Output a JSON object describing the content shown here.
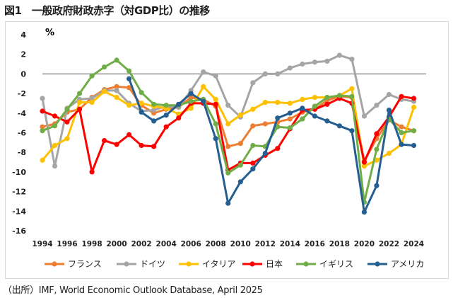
{
  "title": "図1　一般政府財政赤字（対GDP比）の推移",
  "source": "（出所）IMF, World Economic Outlook Database, April 2025",
  "chart_data": {
    "type": "line",
    "unit_label": "%",
    "title": "一般政府財政赤字（対GDP比）の推移",
    "ylim": [
      -16,
      4
    ],
    "yticks": [
      4,
      2,
      0,
      -2,
      -4,
      -6,
      -8,
      -10,
      -12,
      -14,
      -16
    ],
    "xlim": [
      1994,
      2025
    ],
    "xticks": [
      1994,
      1996,
      1998,
      2000,
      2002,
      2004,
      2006,
      2008,
      2010,
      2012,
      2014,
      2016,
      2018,
      2020,
      2022,
      2024
    ],
    "zero_line": true,
    "legend_position": "bottom",
    "series": [
      {
        "name": "フランス",
        "color": "#ED7D31",
        "x": [
          1994,
          1995,
          1996,
          1997,
          1998,
          1999,
          2000,
          2001,
          2002,
          2003,
          2004,
          2005,
          2006,
          2007,
          2008,
          2009,
          2010,
          2011,
          2012,
          2013,
          2014,
          2015,
          2016,
          2017,
          2018,
          2019,
          2020,
          2021,
          2022,
          2023,
          2024
        ],
        "values": [
          -5.4,
          -5.1,
          -3.9,
          -3.6,
          -2.4,
          -1.6,
          -1.3,
          -1.4,
          -3.2,
          -4.0,
          -3.6,
          -3.4,
          -2.4,
          -2.6,
          -3.3,
          -7.4,
          -7.1,
          -5.3,
          -5.1,
          -4.9,
          -4.6,
          -3.9,
          -3.6,
          -2.7,
          -2.3,
          -2.4,
          -8.9,
          -6.6,
          -4.7,
          -5.4,
          -5.8
        ]
      },
      {
        "name": "ドイツ",
        "color": "#A5A5A5",
        "x": [
          1994,
          1995,
          1996,
          1997,
          1998,
          1999,
          2000,
          2001,
          2002,
          2003,
          2004,
          2005,
          2006,
          2007,
          2008,
          2009,
          2010,
          2011,
          2012,
          2013,
          2014,
          2015,
          2016,
          2017,
          2018,
          2019,
          2020,
          2021,
          2022,
          2023,
          2024
        ],
        "values": [
          -2.5,
          -9.4,
          -3.5,
          -2.6,
          -2.5,
          -1.7,
          -1.7,
          -3.0,
          -3.8,
          -3.7,
          -3.3,
          -3.4,
          -1.7,
          0.2,
          -0.2,
          -3.2,
          -4.4,
          -0.9,
          0.0,
          0.0,
          0.6,
          1.0,
          1.2,
          1.3,
          1.9,
          1.5,
          -4.3,
          -3.2,
          -2.1,
          -2.6,
          -2.8
        ]
      },
      {
        "name": "イタリア",
        "color": "#FFC000",
        "x": [
          1994,
          1995,
          1996,
          1997,
          1998,
          1999,
          2000,
          2001,
          2002,
          2003,
          2004,
          2005,
          2006,
          2007,
          2008,
          2009,
          2010,
          2011,
          2012,
          2013,
          2014,
          2015,
          2016,
          2017,
          2018,
          2019,
          2020,
          2021,
          2022,
          2023,
          2024
        ],
        "values": [
          -8.8,
          -7.3,
          -6.6,
          -2.9,
          -2.9,
          -1.8,
          -2.4,
          -3.2,
          -3.0,
          -3.3,
          -3.5,
          -4.1,
          -3.5,
          -1.3,
          -2.6,
          -5.1,
          -4.2,
          -3.6,
          -2.9,
          -2.9,
          -3.0,
          -2.6,
          -2.4,
          -2.4,
          -2.2,
          -1.5,
          -9.4,
          -8.8,
          -8.1,
          -7.2,
          -3.4
        ]
      },
      {
        "name": "日本",
        "color": "#FF0000",
        "x": [
          1994,
          1995,
          1996,
          1997,
          1998,
          1999,
          2000,
          2001,
          2002,
          2003,
          2004,
          2005,
          2006,
          2007,
          2008,
          2009,
          2010,
          2011,
          2012,
          2013,
          2014,
          2015,
          2016,
          2017,
          2018,
          2019,
          2020,
          2021,
          2022,
          2023,
          2024
        ],
        "values": [
          -3.8,
          -4.3,
          -4.9,
          -3.6,
          -10.0,
          -6.8,
          -7.2,
          -6.2,
          -7.3,
          -7.4,
          -5.4,
          -4.5,
          -3.0,
          -3.0,
          -3.1,
          -9.8,
          -9.1,
          -9.1,
          -8.3,
          -7.6,
          -5.6,
          -3.7,
          -3.6,
          -3.1,
          -2.5,
          -3.0,
          -9.0,
          -6.1,
          -4.4,
          -2.3,
          -2.5
        ]
      },
      {
        "name": "イギリス",
        "color": "#70AD47",
        "x": [
          1994,
          1995,
          1996,
          1997,
          1998,
          1999,
          2000,
          2001,
          2002,
          2003,
          2004,
          2005,
          2006,
          2007,
          2008,
          2009,
          2010,
          2011,
          2012,
          2013,
          2014,
          2015,
          2016,
          2017,
          2018,
          2019,
          2020,
          2021,
          2022,
          2023,
          2024
        ],
        "values": [
          -5.8,
          -5.3,
          -3.6,
          -2.0,
          -0.2,
          0.7,
          1.4,
          0.3,
          -1.9,
          -3.1,
          -3.2,
          -3.2,
          -2.8,
          -2.6,
          -5.1,
          -10.1,
          -9.3,
          -7.3,
          -7.4,
          -5.4,
          -5.5,
          -4.6,
          -3.3,
          -2.4,
          -2.2,
          -2.3,
          -13.1,
          -7.7,
          -4.6,
          -6.0,
          -5.8
        ]
      },
      {
        "name": "アメリカ",
        "color": "#255E91",
        "x": [
          2001,
          2002,
          2003,
          2004,
          2005,
          2006,
          2007,
          2008,
          2009,
          2010,
          2011,
          2012,
          2013,
          2014,
          2015,
          2016,
          2017,
          2018,
          2019,
          2020,
          2021,
          2022,
          2023,
          2024
        ],
        "values": [
          -0.5,
          -3.9,
          -4.8,
          -4.2,
          -3.1,
          -2.0,
          -2.8,
          -6.6,
          -13.2,
          -11.0,
          -9.7,
          -8.1,
          -4.5,
          -4.0,
          -3.5,
          -4.3,
          -4.8,
          -5.3,
          -5.8,
          -14.1,
          -11.4,
          -3.7,
          -7.2,
          -7.3
        ]
      }
    ]
  }
}
